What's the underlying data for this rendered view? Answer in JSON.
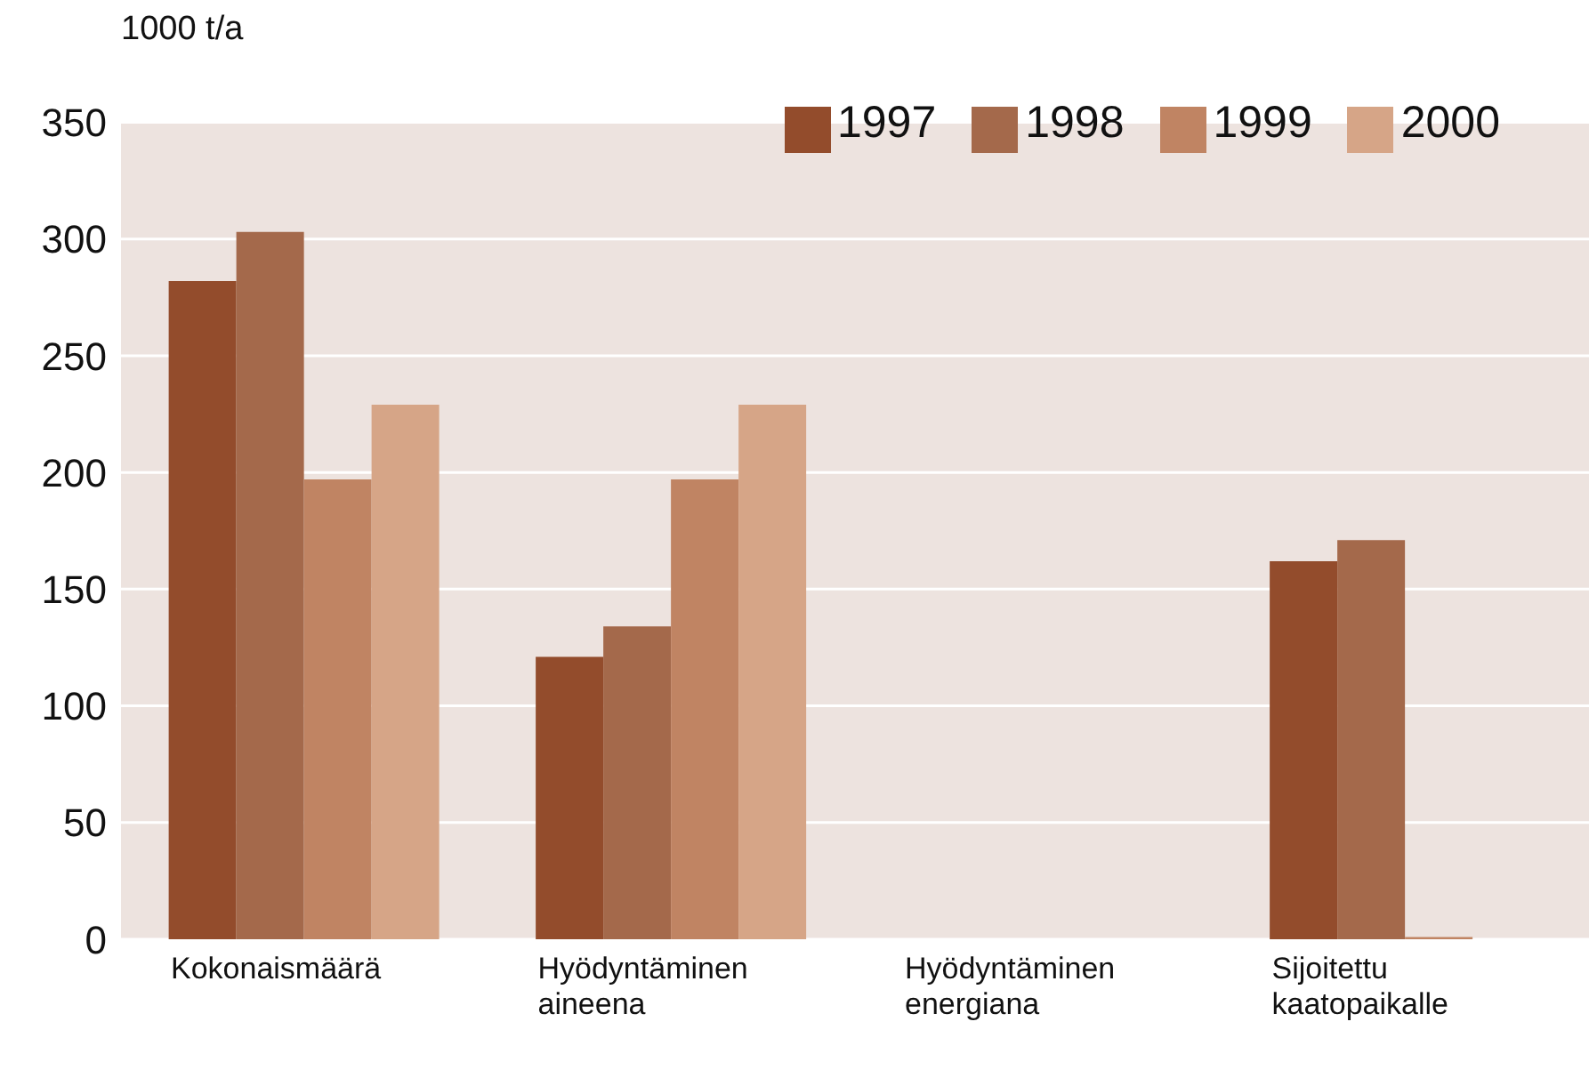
{
  "chart_data": {
    "type": "bar",
    "ylabel": "1000 t/a",
    "categories": [
      "Kokonaismäärä",
      "Hyödyntäminen aineena",
      "Hyödyntäminen energiana",
      "Sijoitettu kaatopaikalle"
    ],
    "series": [
      {
        "name": "1997",
        "color": "#934c2c",
        "values": [
          282,
          121,
          0,
          162
        ]
      },
      {
        "name": "1998",
        "color": "#a4694b",
        "values": [
          303,
          134,
          0,
          171
        ]
      },
      {
        "name": "1999",
        "color": "#c08463",
        "values": [
          197,
          197,
          0,
          1
        ]
      },
      {
        "name": "2000",
        "color": "#d6a587",
        "values": [
          229,
          229,
          0,
          0
        ]
      }
    ],
    "ylim": [
      0,
      350
    ],
    "yticks": [
      0,
      50,
      100,
      150,
      200,
      250,
      300,
      350
    ],
    "grid": "y",
    "legend": "top right"
  }
}
